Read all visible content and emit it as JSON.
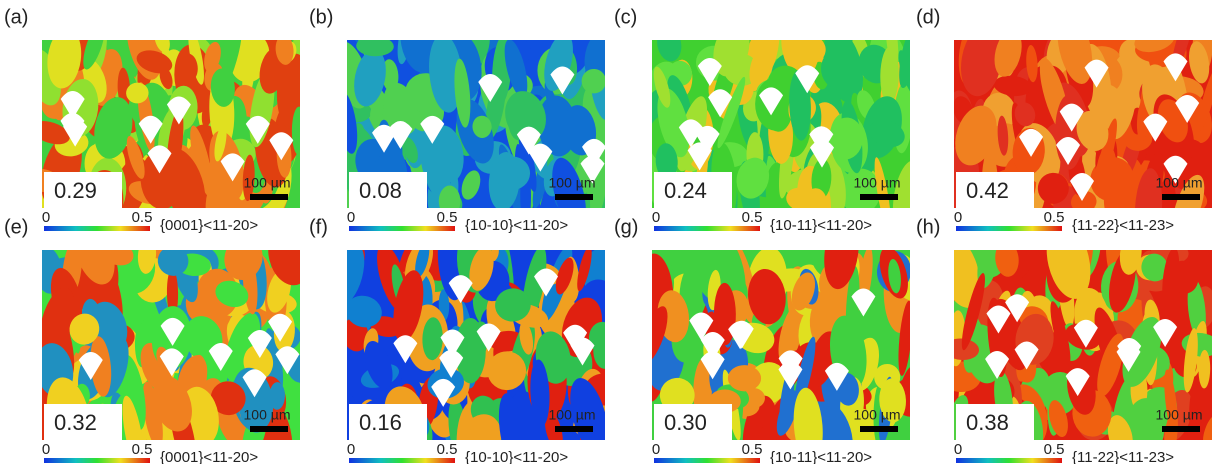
{
  "panels": [
    {
      "label": "(a)",
      "value": "0.29",
      "cbar_min": "0",
      "cbar_max": "0.5",
      "slip_system": "{0001}<11-20>",
      "scale_bar": "100 µm"
    },
    {
      "label": "(b)",
      "value": "0.08",
      "cbar_min": "0",
      "cbar_max": "0.5",
      "slip_system": "{10-10}<11-20>",
      "scale_bar": "100 µm"
    },
    {
      "label": "(c)",
      "value": "0.24",
      "cbar_min": "0",
      "cbar_max": "0.5",
      "slip_system": "{10-11}<11-20>",
      "scale_bar": "100 µm"
    },
    {
      "label": "(d)",
      "value": "0.42",
      "cbar_min": "0",
      "cbar_max": "0.5",
      "slip_system": "{11-22}<11-23>",
      "scale_bar": "100 µm"
    },
    {
      "label": "(e)",
      "value": "0.32",
      "cbar_min": "0",
      "cbar_max": "0.5",
      "slip_system": "{0001}<11-20>",
      "scale_bar": "100 µm"
    },
    {
      "label": "(f)",
      "value": "0.16",
      "cbar_min": "0",
      "cbar_max": "0.5",
      "slip_system": "{10-10}<11-20>",
      "scale_bar": "100 µm"
    },
    {
      "label": "(g)",
      "value": "0.30",
      "cbar_min": "0",
      "cbar_max": "0.5",
      "slip_system": "{10-11}<11-20>",
      "scale_bar": "100 µm"
    },
    {
      "label": "(h)",
      "value": "0.38",
      "cbar_min": "0",
      "cbar_max": "0.5",
      "slip_system": "{11-22}<11-23>",
      "scale_bar": "100 µm"
    }
  ]
}
